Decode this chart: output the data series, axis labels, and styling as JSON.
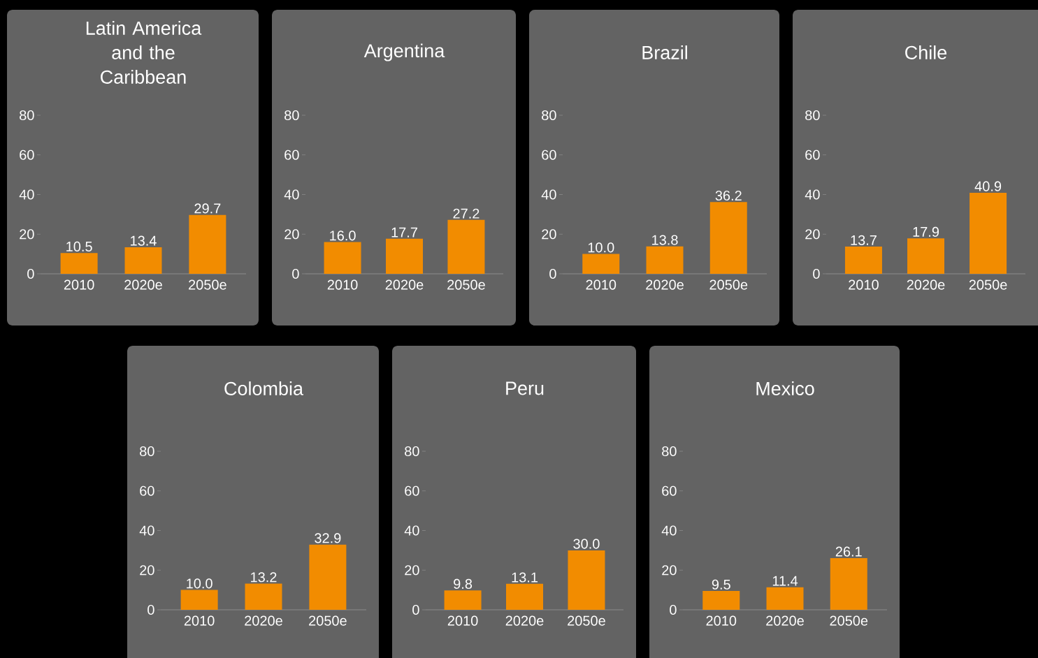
{
  "chart_data": [
    {
      "type": "bar",
      "title": "Latin America and the Caribbean",
      "categories": [
        "2010",
        "2020e",
        "2050e"
      ],
      "values": [
        10.5,
        13.4,
        29.7
      ],
      "value_labels": [
        "10.5",
        "13.4",
        "29.7"
      ],
      "color": "#f28c00",
      "ylim": [
        0,
        80
      ],
      "yticks": [
        0,
        20,
        40,
        60,
        80
      ]
    },
    {
      "type": "bar",
      "title": "Argentina",
      "categories": [
        "2010",
        "2020e",
        "2050e"
      ],
      "values": [
        16.0,
        17.7,
        27.2
      ],
      "value_labels": [
        "16.0",
        "17.7",
        "27.2"
      ],
      "color": "#f28c00",
      "ylim": [
        0,
        80
      ],
      "yticks": [
        0,
        20,
        40,
        60,
        80
      ]
    },
    {
      "type": "bar",
      "title": "Brazil",
      "categories": [
        "2010",
        "2020e",
        "2050e"
      ],
      "values": [
        10.0,
        13.8,
        36.2
      ],
      "value_labels": [
        "10.0",
        "13.8",
        "36.2"
      ],
      "color": "#f28c00",
      "ylim": [
        0,
        80
      ],
      "yticks": [
        0,
        20,
        40,
        60,
        80
      ]
    },
    {
      "type": "bar",
      "title": "Chile",
      "categories": [
        "2010",
        "2020e",
        "2050e"
      ],
      "values": [
        13.7,
        17.9,
        40.9
      ],
      "value_labels": [
        "13.7",
        "17.9",
        "40.9"
      ],
      "color": "#f28c00",
      "ylim": [
        0,
        80
      ],
      "yticks": [
        0,
        20,
        40,
        60,
        80
      ]
    },
    {
      "type": "bar",
      "title": "Colombia",
      "categories": [
        "2010",
        "2020e",
        "2050e"
      ],
      "values": [
        10.0,
        13.2,
        32.9
      ],
      "value_labels": [
        "10.0",
        "13.2",
        "32.9"
      ],
      "color": "#f28c00",
      "ylim": [
        0,
        80
      ],
      "yticks": [
        0,
        20,
        40,
        60,
        80
      ]
    },
    {
      "type": "bar",
      "title": "Peru",
      "categories": [
        "2010",
        "2020e",
        "2050e"
      ],
      "values": [
        9.8,
        13.1,
        30.0
      ],
      "value_labels": [
        "9.8",
        "13.1",
        "30.0"
      ],
      "color": "#f28c00",
      "ylim": [
        0,
        80
      ],
      "yticks": [
        0,
        20,
        40,
        60,
        80
      ]
    },
    {
      "type": "bar",
      "title": "Mexico",
      "categories": [
        "2010",
        "2020e",
        "2050e"
      ],
      "values": [
        9.5,
        11.4,
        26.1
      ],
      "value_labels": [
        "9.5",
        "11.4",
        "26.1"
      ],
      "color": "#f28c00",
      "ylim": [
        0,
        80
      ],
      "yticks": [
        0,
        20,
        40,
        60,
        80
      ]
    }
  ]
}
